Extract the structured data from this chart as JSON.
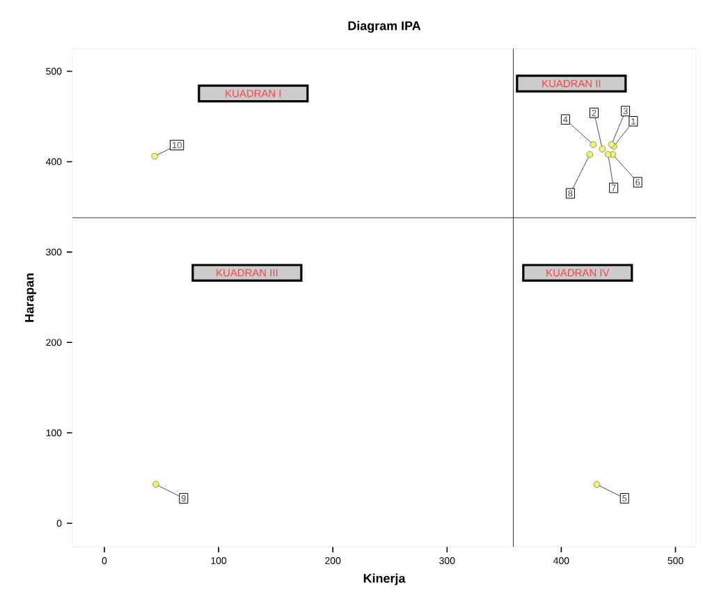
{
  "chart_data": {
    "type": "scatter",
    "title": "Diagram IPA",
    "xlabel": "Kinerja",
    "ylabel": "Harapan",
    "x": [
      446,
      436,
      444,
      428,
      431,
      445,
      441,
      425,
      45,
      44
    ],
    "series": [
      {
        "color": "#f5f56a",
        "values": [
          417,
          414,
          419,
          419,
          43,
          408,
          408,
          408,
          43,
          406
        ]
      }
    ],
    "marker": "circle",
    "xlim": [
      -28,
      518
    ],
    "ylim": [
      -26,
      525
    ],
    "xticks": [
      0,
      100,
      200,
      300,
      400,
      500
    ],
    "yticks": [
      0,
      100,
      200,
      300,
      400,
      500
    ],
    "ref_lines": [
      {
        "axis": "x",
        "value": 358
      },
      {
        "axis": "y",
        "value": 338
      }
    ],
    "annotations": [
      "KUADRAN I",
      "KUADRAN II",
      "KUADRAN III",
      "KUADRAN IV",
      {
        "text": "1",
        "x": 446,
        "y": 417
      },
      {
        "text": "2",
        "x": 436,
        "y": 414
      },
      {
        "text": "3",
        "x": 444,
        "y": 419
      },
      {
        "text": "4",
        "x": 428,
        "y": 419
      },
      {
        "text": "5",
        "x": 431,
        "y": 43
      },
      {
        "text": "6",
        "x": 445,
        "y": 408
      },
      {
        "text": "7",
        "x": 441,
        "y": 408
      },
      {
        "text": "8",
        "x": 425,
        "y": 408
      },
      {
        "text": "9",
        "x": 45,
        "y": 43
      },
      {
        "text": "10",
        "x": 44,
        "y": 406
      }
    ]
  }
}
